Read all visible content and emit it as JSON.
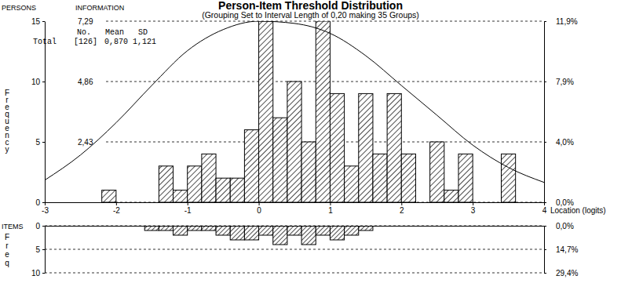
{
  "chart_data": [
    {
      "type": "histogram",
      "title": "Person-Item Threshold Distribution",
      "subtitle": "(Grouping Set to Interval Length of 0,20 making 35 Groups)",
      "panel_label": "PERSONS",
      "y_label": "Frequency",
      "x_label": "Location (logits)",
      "color": "#000000",
      "grid": true,
      "bins": [
        -3,
        -2.8,
        -2.6,
        -2.4,
        -2.2,
        -2,
        -1.8,
        -1.6,
        -1.4,
        -1.2,
        -1,
        -0.8,
        -0.6,
        -0.4,
        -0.2,
        0,
        0.2,
        0.4,
        0.6,
        0.8,
        1,
        1.2,
        1.4,
        1.6,
        1.8,
        2,
        2.2,
        2.4,
        2.6,
        2.8,
        3,
        3.2,
        3.4,
        3.6,
        3.8,
        4
      ],
      "values": [
        0,
        0,
        0,
        0,
        1,
        0,
        0,
        0,
        3,
        1,
        3,
        4,
        2,
        2,
        6,
        15,
        7,
        10,
        5,
        15,
        9,
        3,
        9,
        4,
        9,
        4,
        0,
        5,
        1,
        4,
        0,
        0,
        4,
        0,
        0
      ],
      "xlim": [
        -3,
        4
      ],
      "xticks": [
        -3,
        -2,
        -1,
        0,
        1,
        2,
        3,
        4
      ],
      "ylim": [
        0,
        15
      ],
      "yticks": [
        0,
        5,
        10,
        15
      ],
      "y2lim": [
        0,
        11.9
      ],
      "y2ticks": [
        {
          "value": 0,
          "label": "0,0%"
        },
        {
          "value": 3.97,
          "label": "4,0%"
        },
        {
          "value": 7.94,
          "label": "7,9%"
        },
        {
          "value": 11.9,
          "label": "11,9%"
        }
      ],
      "stats": {
        "columns": [
          "No.",
          "Mean",
          "SD"
        ],
        "rows": [
          {
            "label": "Total",
            "values": [
              "[126]",
              "0,870",
              "1,121"
            ]
          }
        ]
      },
      "series": [
        {
          "name": "INFORMATION",
          "type": "line",
          "color": "#000000",
          "x": [
            -3,
            -2.5,
            -2,
            -1.5,
            -1,
            -0.5,
            0,
            0.5,
            1,
            1.5,
            2,
            2.5,
            3,
            3.5,
            4
          ],
          "values": [
            0.89,
            1.9,
            3.2,
            4.7,
            6.1,
            6.95,
            7.29,
            7.2,
            6.8,
            5.9,
            4.7,
            3.5,
            2.3,
            1.4,
            0.8
          ],
          "ylim": [
            0,
            7.29
          ],
          "yticks": [
            {
              "value": 2.43,
              "label": "2,43"
            },
            {
              "value": 4.86,
              "label": "4,86"
            },
            {
              "value": 7.29,
              "label": "7,29"
            }
          ]
        }
      ]
    },
    {
      "type": "histogram",
      "panel_label": "ITEMS",
      "y_label": "Freq",
      "color": "#000000",
      "grid": true,
      "tick_labels": "y",
      "bins": [
        -3,
        -2.8,
        -2.6,
        -2.4,
        -2.2,
        -2,
        -1.8,
        -1.6,
        -1.4,
        -1.2,
        -1,
        -0.8,
        -0.6,
        -0.4,
        -0.2,
        0,
        0.2,
        0.4,
        0.6,
        0.8,
        1,
        1.2,
        1.4,
        1.6,
        1.8,
        2,
        2.2,
        2.4,
        2.6,
        2.8,
        3,
        3.2,
        3.4,
        3.6,
        3.8,
        4
      ],
      "values": [
        0,
        0,
        0,
        0,
        0,
        0,
        0,
        1,
        1,
        2,
        1,
        1,
        2,
        3,
        3,
        2,
        4,
        2,
        4,
        2,
        3,
        2,
        1,
        0,
        0,
        0,
        0,
        0,
        0,
        0,
        0,
        0,
        0,
        0,
        0
      ],
      "xlim": [
        -3,
        4
      ],
      "ylim": [
        10,
        0
      ],
      "yticks": [
        0,
        5,
        10
      ],
      "y2lim": [
        29.4,
        0
      ],
      "y2ticks": [
        {
          "value": 0,
          "label": "0,0%"
        },
        {
          "value": 14.7,
          "label": "14,7%"
        },
        {
          "value": 29.4,
          "label": "29,4%"
        }
      ]
    }
  ]
}
